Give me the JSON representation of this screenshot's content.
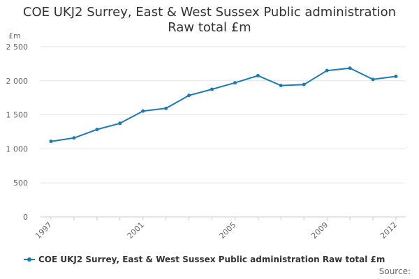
{
  "chart_data": {
    "type": "line",
    "title_lines": [
      "COE UKJ2 Surrey, East & West Sussex Public administration",
      "Raw total £m"
    ],
    "y_unit_label": "£m",
    "x": [
      1997,
      1998,
      1999,
      2000,
      2001,
      2002,
      2003,
      2004,
      2005,
      2006,
      2007,
      2008,
      2009,
      2010,
      2011,
      2012
    ],
    "x_tick_labels": [
      "1997",
      "2001",
      "2005",
      "2009",
      "2012"
    ],
    "y_ticks": [
      0,
      500,
      1000,
      1500,
      2000,
      2500
    ],
    "y_tick_labels": [
      "0",
      "500",
      "1 000",
      "1 500",
      "2 000",
      "2 500"
    ],
    "ylim": [
      0,
      2500
    ],
    "grid": true,
    "legend_position": "bottom",
    "series": [
      {
        "name": "COE UKJ2 Surrey, East & West Sussex Public administration Raw total £m",
        "color": "#1a7ab6",
        "values": [
          1110,
          1160,
          1285,
          1375,
          1555,
          1595,
          1785,
          1875,
          1970,
          2075,
          1930,
          1945,
          2150,
          2185,
          2020,
          2065
        ]
      }
    ]
  },
  "source_label": "Source:"
}
